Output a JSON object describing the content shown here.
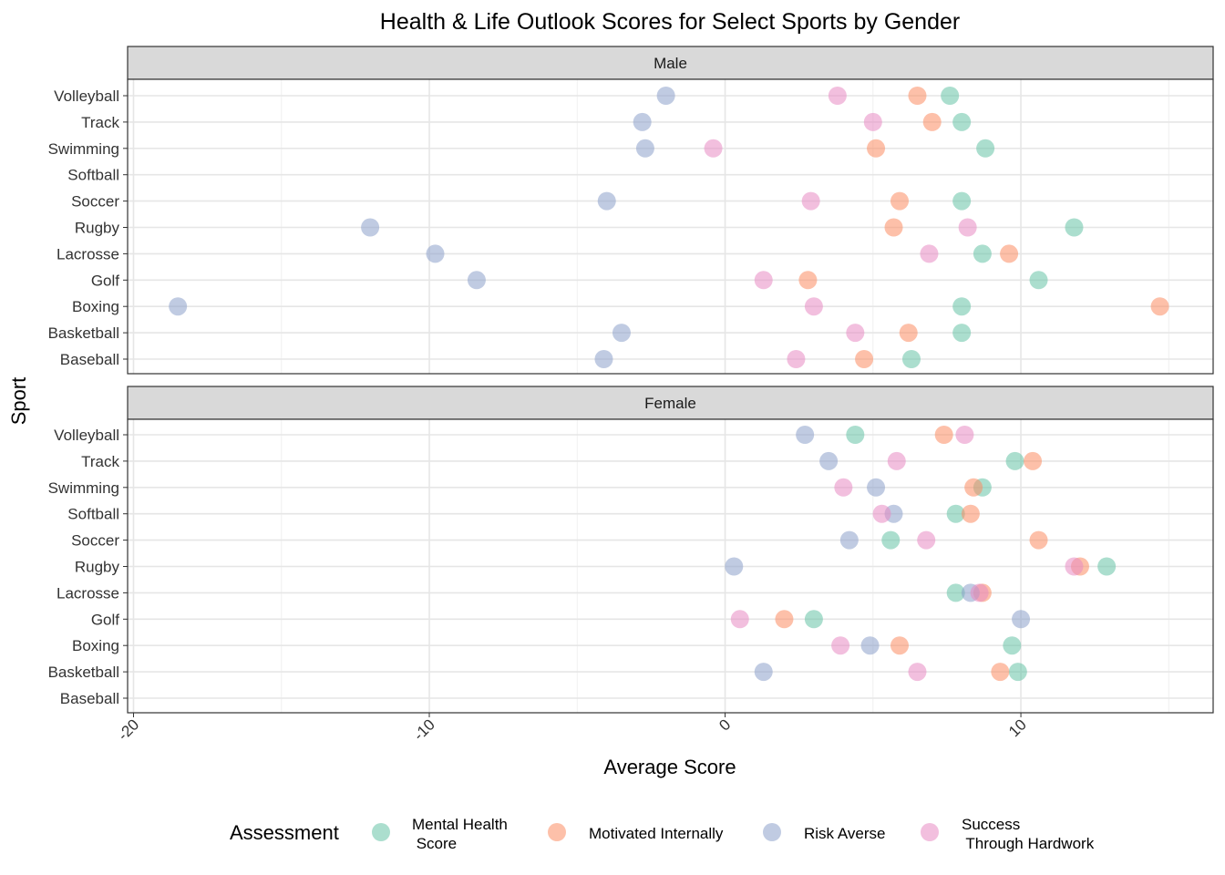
{
  "chart_data": {
    "type": "scatter",
    "title": "Health & Life Outlook Scores for Select Sports by Gender",
    "xlabel": "Average Score",
    "ylabel": "Sport",
    "xlim": [
      -20.2,
      16.5
    ],
    "x_ticks": [
      -20,
      -10,
      0,
      10
    ],
    "x_tick_labels": [
      "-20",
      "-10",
      "0",
      "10"
    ],
    "categories": [
      "Volleyball",
      "Track",
      "Swimming",
      "Softball",
      "Soccer",
      "Rugby",
      "Lacrosse",
      "Golf",
      "Boxing",
      "Basketball",
      "Baseball"
    ],
    "grid": true,
    "legend": {
      "title": "Assessment",
      "position": "bottom",
      "entries": [
        {
          "key": "mental",
          "label_lines": [
            "Mental Health",
            " Score"
          ],
          "color": "#66C2A5"
        },
        {
          "key": "motivated",
          "label_lines": [
            "Motivated Internally"
          ],
          "color": "#FC8D62"
        },
        {
          "key": "risk",
          "label_lines": [
            "Risk Averse"
          ],
          "color": "#8DA0CB"
        },
        {
          "key": "success",
          "label_lines": [
            "Success",
            " Through Hardwork"
          ],
          "color": "#E78AC3"
        }
      ]
    },
    "panels": [
      {
        "label": "Male",
        "series": [
          {
            "key": "mental",
            "values": [
              7.6,
              8.0,
              8.8,
              null,
              8.0,
              11.8,
              8.7,
              10.6,
              8.0,
              8.0,
              6.3
            ]
          },
          {
            "key": "motivated",
            "values": [
              6.5,
              7.0,
              5.1,
              null,
              5.9,
              5.7,
              9.6,
              2.8,
              14.7,
              6.2,
              4.7
            ]
          },
          {
            "key": "risk",
            "values": [
              -2.0,
              -2.8,
              -2.7,
              null,
              -4.0,
              -12.0,
              -9.8,
              -8.4,
              -18.5,
              -3.5,
              -4.1
            ]
          },
          {
            "key": "success",
            "values": [
              3.8,
              5.0,
              -0.4,
              null,
              2.9,
              8.2,
              6.9,
              1.3,
              3.0,
              4.4,
              2.4
            ]
          }
        ]
      },
      {
        "label": "Female",
        "series": [
          {
            "key": "mental",
            "values": [
              4.4,
              9.8,
              8.7,
              7.8,
              5.6,
              12.9,
              7.8,
              3.0,
              9.7,
              9.9,
              null
            ]
          },
          {
            "key": "motivated",
            "values": [
              7.4,
              10.4,
              8.4,
              8.3,
              10.6,
              12.0,
              8.7,
              2.0,
              5.9,
              9.3,
              null
            ]
          },
          {
            "key": "risk",
            "values": [
              2.7,
              3.5,
              5.1,
              5.7,
              4.2,
              0.3,
              8.3,
              10.0,
              4.9,
              1.3,
              null
            ]
          },
          {
            "key": "success",
            "values": [
              8.1,
              5.8,
              4.0,
              5.3,
              6.8,
              11.8,
              8.6,
              0.5,
              3.9,
              6.5,
              null
            ]
          }
        ]
      }
    ]
  }
}
